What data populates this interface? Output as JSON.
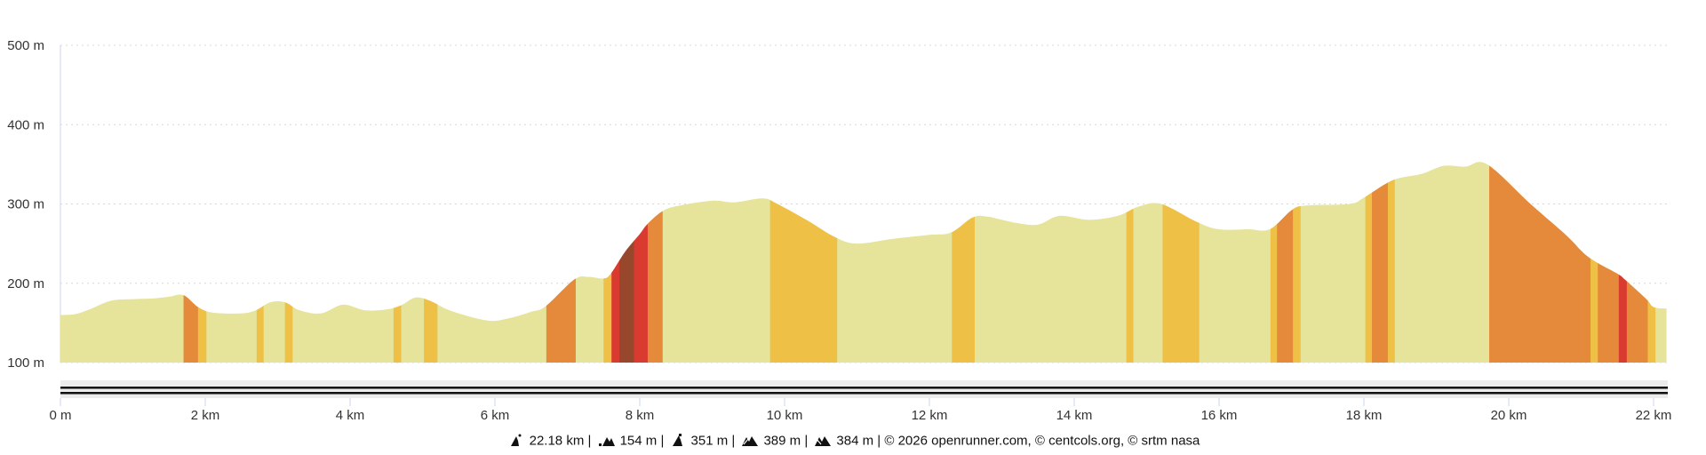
{
  "chart_data": {
    "type": "area",
    "title": "",
    "xlabel": "",
    "ylabel": "",
    "xlim": [
      0,
      22.18
    ],
    "ylim": [
      100,
      500
    ],
    "grid": true,
    "x_ticks": [
      {
        "value": 0,
        "label": "0 m"
      },
      {
        "value": 2,
        "label": "2 km"
      },
      {
        "value": 4,
        "label": "4 km"
      },
      {
        "value": 6,
        "label": "6 km"
      },
      {
        "value": 8,
        "label": "8 km"
      },
      {
        "value": 10,
        "label": "10 km"
      },
      {
        "value": 12,
        "label": "12 km"
      },
      {
        "value": 14,
        "label": "14 km"
      },
      {
        "value": 16,
        "label": "16 km"
      },
      {
        "value": 18,
        "label": "18 km"
      },
      {
        "value": 20,
        "label": "20 km"
      },
      {
        "value": 22,
        "label": "22 km"
      }
    ],
    "y_ticks": [
      {
        "value": 100,
        "label": "100 m"
      },
      {
        "value": 200,
        "label": "200 m"
      },
      {
        "value": 300,
        "label": "300 m"
      },
      {
        "value": 400,
        "label": "400 m"
      },
      {
        "value": 500,
        "label": "500 m"
      }
    ],
    "profile": {
      "x_km": [
        0,
        0.2,
        0.4,
        0.7,
        1.0,
        1.3,
        1.5,
        1.7,
        1.9,
        2.1,
        2.5,
        2.7,
        2.9,
        3.1,
        3.3,
        3.6,
        3.9,
        4.2,
        4.5,
        4.7,
        4.9,
        5.1,
        5.4,
        5.9,
        6.2,
        6.5,
        6.7,
        7.1,
        7.3,
        7.5,
        7.6,
        7.8,
        8.0,
        8.1,
        8.3,
        8.5,
        9.0,
        9.3,
        9.7,
        9.9,
        10.3,
        10.7,
        11.0,
        11.5,
        12.0,
        12.3,
        12.6,
        12.8,
        13.2,
        13.5,
        13.8,
        14.2,
        14.6,
        14.9,
        15.2,
        15.7,
        16.0,
        16.4,
        16.7,
        17.0,
        17.2,
        17.8,
        18.0,
        18.4,
        18.8,
        19.1,
        19.4,
        19.7,
        20.3,
        20.8,
        21.1,
        21.5,
        21.6,
        21.9,
        22.0,
        22.18
      ],
      "elevation_m": [
        160,
        161,
        167,
        178,
        180,
        181,
        183,
        185,
        170,
        163,
        162,
        166,
        176,
        176,
        166,
        162,
        173,
        166,
        167,
        172,
        182,
        178,
        165,
        153,
        156,
        164,
        171,
        205,
        208,
        206,
        212,
        240,
        262,
        274,
        290,
        297,
        304,
        302,
        307,
        300,
        280,
        258,
        250,
        256,
        261,
        264,
        283,
        284,
        276,
        274,
        285,
        280,
        285,
        297,
        300,
        277,
        268,
        268,
        268,
        292,
        298,
        300,
        308,
        330,
        338,
        348,
        347,
        350,
        300,
        260,
        233,
        212,
        205,
        180,
        170,
        168
      ]
    },
    "grade_classes": {
      "flat": "#e5e49a",
      "moderate": "#efc046",
      "steep": "#e5893a",
      "very_steep": "#d93b30",
      "extreme": "#97472b"
    },
    "segments": [
      {
        "from": 1.7,
        "to": 1.9,
        "class": "steep"
      },
      {
        "from": 1.9,
        "to": 2.01,
        "class": "moderate"
      },
      {
        "from": 2.71,
        "to": 2.8,
        "class": "moderate"
      },
      {
        "from": 3.1,
        "to": 3.2,
        "class": "moderate"
      },
      {
        "from": 4.6,
        "to": 4.7,
        "class": "moderate"
      },
      {
        "from": 5.02,
        "to": 5.2,
        "class": "moderate"
      },
      {
        "from": 6.71,
        "to": 7.11,
        "class": "steep"
      },
      {
        "from": 7.5,
        "to": 7.61,
        "class": "moderate"
      },
      {
        "from": 7.61,
        "to": 7.72,
        "class": "very_steep"
      },
      {
        "from": 7.72,
        "to": 7.92,
        "class": "extreme"
      },
      {
        "from": 7.92,
        "to": 8.11,
        "class": "very_steep"
      },
      {
        "from": 8.11,
        "to": 8.31,
        "class": "steep"
      },
      {
        "from": 9.8,
        "to": 10.72,
        "class": "moderate"
      },
      {
        "from": 12.31,
        "to": 12.62,
        "class": "moderate"
      },
      {
        "from": 14.72,
        "to": 14.81,
        "class": "moderate"
      },
      {
        "from": 15.22,
        "to": 15.72,
        "class": "moderate"
      },
      {
        "from": 16.71,
        "to": 16.8,
        "class": "moderate"
      },
      {
        "from": 16.8,
        "to": 17.02,
        "class": "steep"
      },
      {
        "from": 17.02,
        "to": 17.12,
        "class": "moderate"
      },
      {
        "from": 18.02,
        "to": 18.11,
        "class": "moderate"
      },
      {
        "from": 18.11,
        "to": 18.33,
        "class": "steep"
      },
      {
        "from": 18.33,
        "to": 18.42,
        "class": "moderate"
      },
      {
        "from": 19.73,
        "to": 21.13,
        "class": "steep"
      },
      {
        "from": 21.13,
        "to": 21.23,
        "class": "moderate"
      },
      {
        "from": 21.23,
        "to": 21.52,
        "class": "steep"
      },
      {
        "from": 21.52,
        "to": 21.63,
        "class": "very_steep"
      },
      {
        "from": 21.63,
        "to": 21.92,
        "class": "steep"
      },
      {
        "from": 21.92,
        "to": 22.02,
        "class": "moderate"
      }
    ]
  },
  "footer": {
    "distance": "22.18 km",
    "min_elevation": "154 m",
    "max_elevation": "351 m",
    "elevation_gain": "389 m",
    "elevation_loss": "384 m",
    "separator": "|",
    "credits": "© 2026 openrunner.com, © centcols.org, © srtm nasa",
    "icons": [
      "distance-icon",
      "min-elevation-icon",
      "max-elevation-icon",
      "elevation-gain-icon",
      "elevation-loss-icon"
    ]
  }
}
